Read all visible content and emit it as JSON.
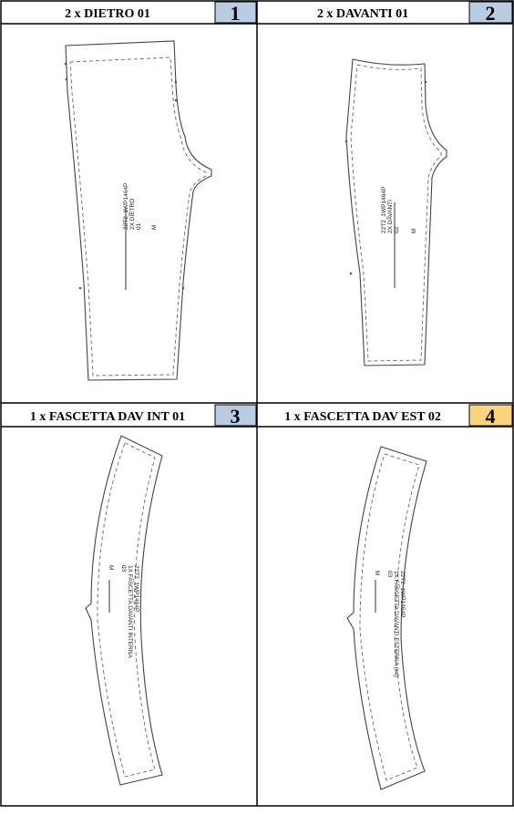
{
  "panels": [
    {
      "title": "2 x DIETRO 01",
      "number": "1",
      "badge_color": "#b8cce4",
      "piece_label": [
        "22T2_1WP1464P",
        "2X DIETRO",
        "01",
        "M"
      ]
    },
    {
      "title": "2 x DAVANTI 01",
      "number": "2",
      "badge_color": "#b8cce4",
      "piece_label": [
        "22T2_1WP1464P",
        "2X DAVANTI",
        "02",
        "M"
      ]
    },
    {
      "title": "1 x FASCETTA DAV INT 01",
      "number": "3",
      "badge_color": "#b8cce4",
      "piece_label": [
        "22T2_1WP1464P",
        "1X FASCETTA DAVANTI INTERNA",
        "03",
        "M"
      ]
    },
    {
      "title": "1 x FASCETTA DAV EST 02",
      "number": "4",
      "badge_color": "#fcd47c",
      "piece_label": [
        "22T2_1WP1464P",
        "1X FASCETTA DAVANTI ESTERNA (x4)",
        "03",
        "M"
      ]
    }
  ]
}
